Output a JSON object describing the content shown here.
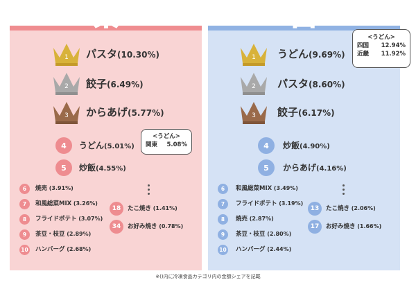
{
  "east": {
    "title": "東",
    "top3": [
      {
        "rank": "1",
        "name": "パスタ",
        "pct": "(10.30%)",
        "crown": "gold"
      },
      {
        "rank": "2",
        "name": "餃子",
        "pct": "(6.49%)",
        "crown": "silver"
      },
      {
        "rank": "3",
        "name": "からあげ",
        "pct": "(5.77%)",
        "crown": "bronze"
      }
    ],
    "mid": [
      {
        "rank": "4",
        "name": "うどん",
        "pct": "(5.01%)"
      },
      {
        "rank": "5",
        "name": "炒飯",
        "pct": "(4.55%)"
      }
    ],
    "small_left": [
      {
        "rank": "6",
        "name": "焼売",
        "pct": "(3.91%)"
      },
      {
        "rank": "7",
        "name": "和風総菜MIX",
        "pct": "(3.26%)"
      },
      {
        "rank": "8",
        "name": "フライドポテト",
        "pct": "(3.07%)"
      },
      {
        "rank": "9",
        "name": "茶豆・枝豆",
        "pct": "(2.89%)"
      },
      {
        "rank": "10",
        "name": "ハンバーグ",
        "pct": "(2.68%)"
      }
    ],
    "small_right": [
      {
        "rank": "18",
        "name": "たこ焼き",
        "pct": "(1.41%)"
      },
      {
        "rank": "34",
        "name": "お好み焼き",
        "pct": "(0.78%)"
      }
    ],
    "callout": {
      "title": "<うどん>",
      "rows": [
        {
          "label": "関東",
          "value": "5.08%"
        }
      ]
    }
  },
  "west": {
    "title": "西",
    "top3": [
      {
        "rank": "1",
        "name": "うどん",
        "pct": "(9.69%)",
        "crown": "gold"
      },
      {
        "rank": "2",
        "name": "パスタ",
        "pct": "(8.60%)",
        "crown": "silver"
      },
      {
        "rank": "3",
        "name": "餃子",
        "pct": "(6.17%)",
        "crown": "bronze"
      }
    ],
    "mid": [
      {
        "rank": "4",
        "name": "炒飯",
        "pct": "(4.90%)"
      },
      {
        "rank": "5",
        "name": "からあげ",
        "pct": "(4.16%)"
      }
    ],
    "small_left": [
      {
        "rank": "6",
        "name": "和風総菜MIX",
        "pct": "(3.49%)"
      },
      {
        "rank": "7",
        "name": "フライドポテト",
        "pct": "(3.19%)"
      },
      {
        "rank": "8",
        "name": "焼売",
        "pct": "(2.87%)"
      },
      {
        "rank": "9",
        "name": "茶豆・枝豆",
        "pct": "(2.80%)"
      },
      {
        "rank": "10",
        "name": "ハンバーグ",
        "pct": "(2.44%)"
      }
    ],
    "small_right": [
      {
        "rank": "13",
        "name": "たこ焼き",
        "pct": "(2.06%)"
      },
      {
        "rank": "17",
        "name": "お好み焼き",
        "pct": "(1.66%)"
      }
    ],
    "callout": {
      "title": "<うどん>",
      "rows": [
        {
          "label": "四国",
          "value": "12.94%"
        },
        {
          "label": "近畿",
          "value": "11.92%"
        }
      ]
    }
  },
  "footnote": "※()内に冷凍食品カテゴリ内の金額シェアを記載",
  "colors": {
    "east_accent": "#ee8c90",
    "west_accent": "#8fb0e2",
    "gold": "#d8b23a",
    "silver": "#a9a9a9",
    "bronze": "#9a6a4a"
  }
}
